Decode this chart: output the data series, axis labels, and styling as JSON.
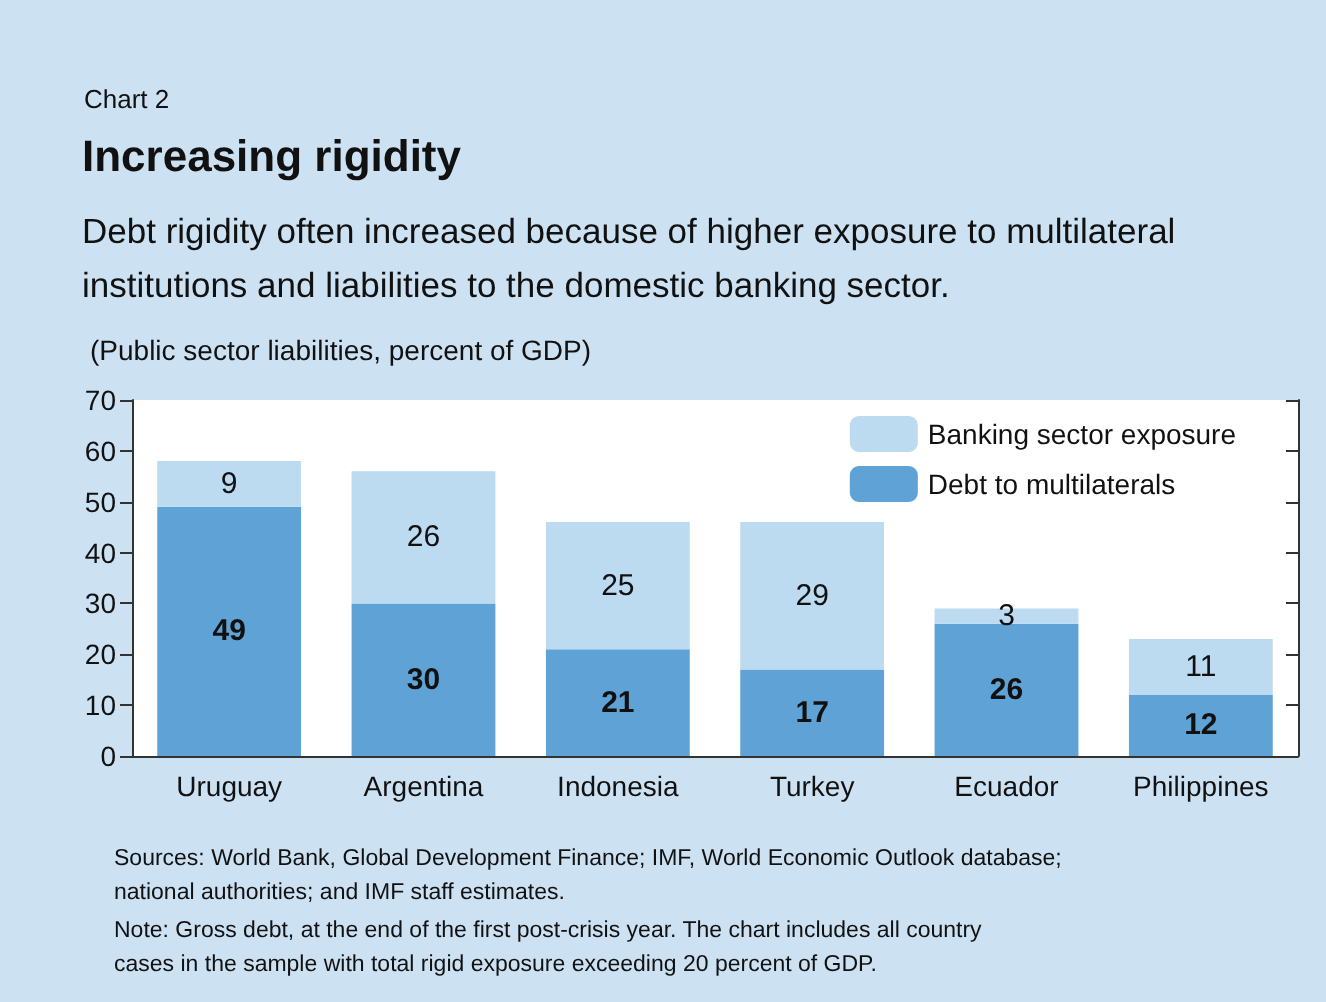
{
  "chart_data": {
    "type": "bar",
    "title": "Increasing rigidity",
    "subtitle": "Debt rigidity often increased because of higher exposure to multilateral institutions and liabilities to the domestic banking sector.",
    "ylabel": "(Public sector liabilities, percent of GDP)",
    "annotations": [
      "Chart 2",
      "Sources: World Bank, Global Development Finance; IMF, World Economic Outlook database; national authorities; and IMF staff estimates.",
      "Note: Gross debt, at the end of the first post-crisis year. The chart includes all country cases in the sample with total rigid exposure exceeding 20 percent of GDP."
    ],
    "categories": [
      "Uruguay",
      "Argentina",
      "Indonesia",
      "Turkey",
      "Ecuador",
      "Philippines"
    ],
    "series": [
      {
        "name": "Debt to multilaterals",
        "color": "#5fa3d6",
        "values": [
          49,
          30,
          21,
          17,
          26,
          12
        ]
      },
      {
        "name": "Banking sector exposure",
        "color": "#bcdaf0",
        "values": [
          9,
          26,
          25,
          29,
          3,
          11
        ]
      }
    ],
    "stacked": true,
    "data_labels": true,
    "ylim": [
      0,
      70
    ],
    "yticks": [
      0,
      10,
      20,
      30,
      40,
      50,
      60,
      70
    ],
    "grid": false,
    "legend": "top right"
  }
}
